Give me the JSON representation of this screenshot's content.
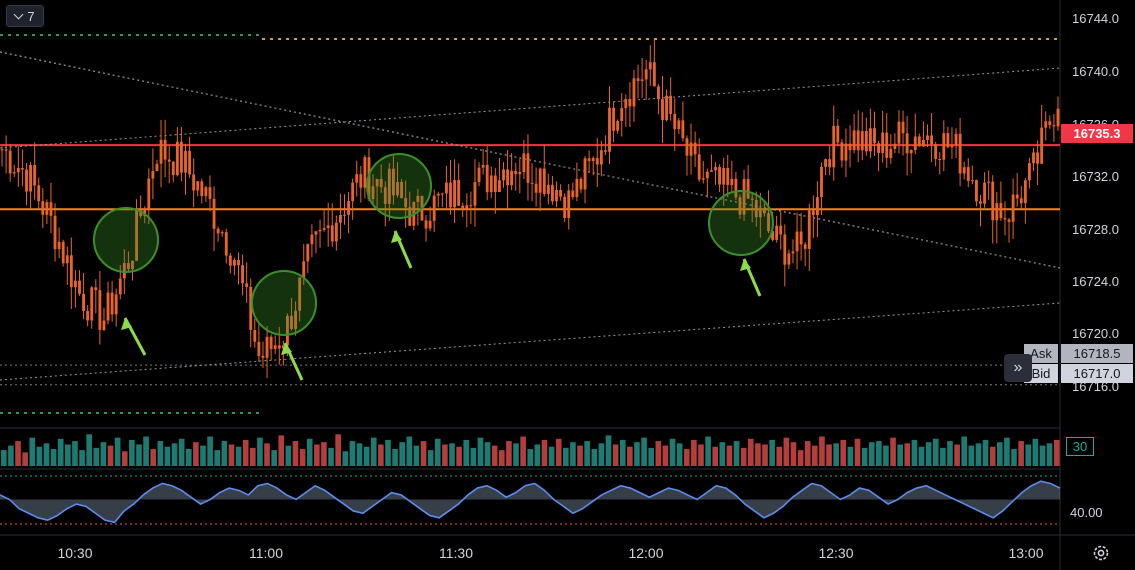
{
  "toolbar": {
    "collapse_count": "7",
    "collapse_icon": "chevron-down-icon"
  },
  "price_axis": {
    "labels": [
      "16744.0",
      "16740.0",
      "16736.0",
      "16732.0",
      "16728.0",
      "16724.0",
      "16720.0",
      "16716.0"
    ]
  },
  "last_price": {
    "label": "16735.3",
    "color": "#f23645"
  },
  "quote": {
    "ask_label": "Ask",
    "ask_value": "16718.5",
    "bid_label": "Bid",
    "bid_value": "16717.0"
  },
  "expand_icon": "double-chevron-right-icon",
  "volume": {
    "label": "30",
    "color_up": "#26a69a",
    "color_down": "#ef5350"
  },
  "oscillator": {
    "label": "40.00",
    "line_color": "#5b8def"
  },
  "time_axis": {
    "labels": [
      "10:30",
      "11:00",
      "11:30",
      "12:00",
      "12:30",
      "13:00"
    ]
  },
  "settings_icon": "gear-icon",
  "colors": {
    "candle": "#e8652a",
    "support": "#f5821f",
    "resistance": "#f23645",
    "marker": "#3b8f2a",
    "arrow": "#8bdc4a"
  },
  "chart_data": [
    {
      "type": "line",
      "subtype": "candlestick",
      "price_range": [
        16715,
        16745
      ],
      "x": [
        "10:20",
        "10:24",
        "10:28",
        "10:32",
        "10:36",
        "10:40",
        "10:44",
        "10:48",
        "10:52",
        "10:56",
        "11:00",
        "11:04",
        "11:08",
        "11:12",
        "11:16",
        "11:20",
        "11:24",
        "11:28",
        "11:32",
        "11:36",
        "11:40",
        "11:44",
        "11:48",
        "11:52",
        "11:56",
        "12:00",
        "12:04",
        "12:08",
        "12:12",
        "12:16",
        "12:20",
        "12:24",
        "12:28",
        "12:32",
        "12:36",
        "12:40",
        "12:44",
        "12:48",
        "12:52",
        "12:56",
        "13:00",
        "13:02"
      ],
      "series": [
        {
          "name": "",
          "values": [
            16735,
            16733,
            16729,
            16724,
            16722,
            16727,
            16735,
            16734,
            16731,
            16727,
            16719,
            16721,
            16727,
            16730,
            16733,
            16732,
            16730,
            16731,
            16732,
            16733,
            16734,
            16733,
            16731,
            16734,
            16739,
            16741,
            16737,
            16733,
            16732,
            16731,
            16728,
            16727,
            16735,
            16736,
            16735,
            16736,
            16736,
            16735,
            16732,
            16730,
            16733,
            16739
          ]
        }
      ],
      "horizontal_levels": [
        16735.3,
        16730.4,
        16743.7
      ],
      "dotted_levels": [
        16718.5,
        16717.0
      ],
      "grid": false
    },
    {
      "type": "bar",
      "values": [
        14,
        18,
        22,
        12,
        25,
        17,
        20,
        15,
        24,
        19,
        22,
        14,
        28,
        16,
        21,
        18,
        25,
        13,
        23,
        19,
        26,
        15,
        22,
        17,
        20,
        24,
        15,
        21,
        18,
        26,
        14,
        22,
        19,
        17,
        23,
        16,
        25,
        20,
        14,
        27,
        18,
        22,
        15,
        24,
        19,
        21,
        16,
        28,
        13,
        22,
        20,
        17,
        25,
        19,
        23,
        15,
        21,
        26,
        18,
        22,
        14,
        24,
        19,
        20,
        17,
        23,
        16,
        25,
        21,
        18,
        14,
        22,
        20,
        26,
        15,
        19,
        23,
        17,
        24,
        16,
        21,
        18,
        22,
        15,
        20,
        27,
        19,
        23,
        17,
        21,
        25,
        16,
        22,
        18,
        24,
        20,
        15,
        23,
        19,
        26,
        17,
        21,
        18,
        22,
        16,
        24,
        20,
        19,
        23,
        17,
        25,
        21,
        14,
        22,
        18,
        26,
        19,
        20,
        23,
        17,
        24,
        16,
        21,
        22,
        18,
        25,
        19,
        20,
        23,
        17,
        21,
        24,
        16,
        22,
        19,
        26,
        18,
        20,
        23,
        17,
        21,
        25,
        15,
        22,
        19,
        24,
        18,
        20,
        23
      ],
      "ylim": [
        0,
        30
      ],
      "grid": false
    },
    {
      "type": "area",
      "values": [
        52,
        50,
        46,
        44,
        42,
        41,
        43,
        46,
        48,
        47,
        44,
        41,
        40,
        45,
        48,
        52,
        55,
        57,
        56,
        54,
        51,
        48,
        50,
        53,
        55,
        54,
        52,
        56,
        57,
        55,
        52,
        50,
        53,
        56,
        54,
        51,
        48,
        45,
        44,
        47,
        50,
        53,
        52,
        49,
        46,
        43,
        42,
        45,
        48,
        52,
        55,
        56,
        54,
        51,
        53,
        56,
        57,
        54,
        50,
        47,
        44,
        46,
        49,
        52,
        54,
        56,
        55,
        53,
        51,
        53,
        55,
        54,
        52,
        50,
        53,
        56,
        55,
        52,
        48,
        45,
        42,
        44,
        47,
        51,
        54,
        57,
        56,
        53,
        50,
        52,
        55,
        54,
        51,
        48,
        50,
        53,
        55,
        56,
        54,
        52,
        50,
        48,
        46,
        44,
        42,
        45,
        49,
        53,
        56,
        58,
        57,
        55
      ],
      "reference": 50,
      "ylim": [
        38,
        62
      ],
      "grid": false
    }
  ]
}
